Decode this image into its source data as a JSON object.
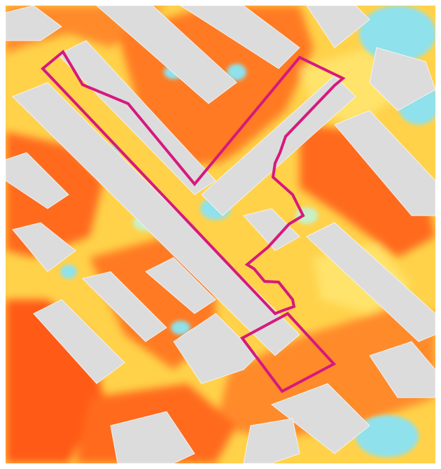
{
  "map": {
    "kind": "heat-intensity raster over building footprints",
    "colors": {
      "building": "#dcdcdc",
      "building_edge": "#f2f2f2",
      "low": "#8fe1ec",
      "low_mid": "#c8f0c8",
      "mid": "#ffef6e",
      "mid_high": "#ffc53d",
      "high": "#ff8a2a",
      "very_high": "#ff5a14",
      "boundary": "#d6197e"
    },
    "legend": null,
    "labels": []
  }
}
